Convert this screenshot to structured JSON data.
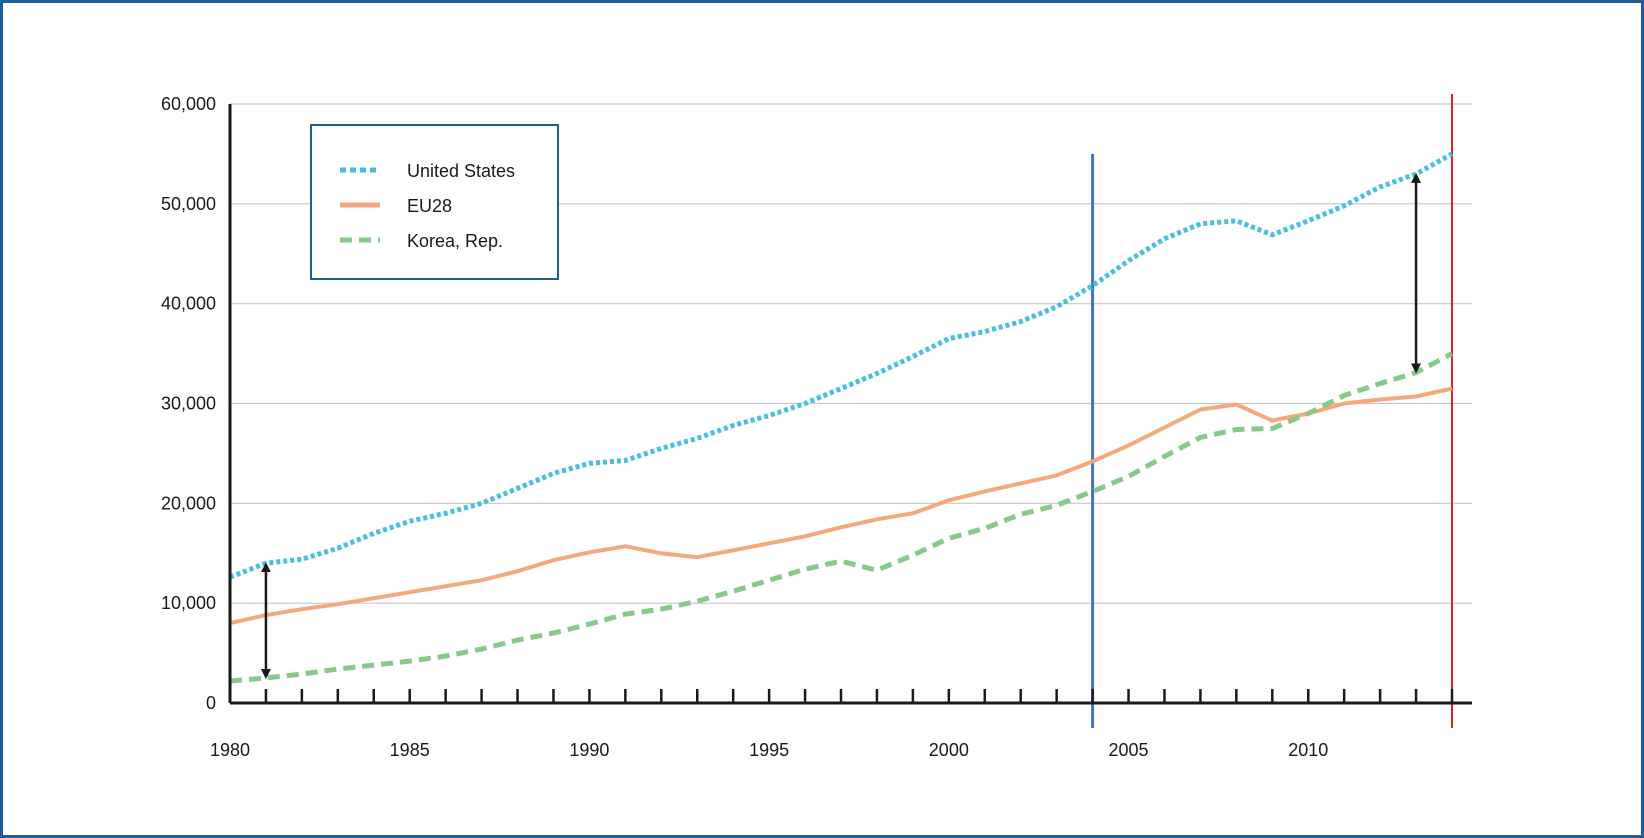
{
  "chart_data": {
    "type": "line",
    "x": [
      1980,
      1981,
      1982,
      1983,
      1984,
      1985,
      1986,
      1987,
      1988,
      1989,
      1990,
      1991,
      1992,
      1993,
      1994,
      1995,
      1996,
      1997,
      1998,
      1999,
      2000,
      2001,
      2002,
      2003,
      2004,
      2005,
      2006,
      2007,
      2008,
      2009,
      2010,
      2011,
      2012,
      2013,
      2014
    ],
    "series": [
      {
        "name": "United States",
        "color": "#45c0dd",
        "dash": "dotted",
        "values": [
          12600,
          14000,
          14400,
          15500,
          17000,
          18200,
          19000,
          20000,
          21500,
          23000,
          24000,
          24300,
          25500,
          26500,
          27800,
          28800,
          30000,
          31500,
          33000,
          34700,
          36500,
          37200,
          38200,
          39700,
          41800,
          44300,
          46500,
          48000,
          48300,
          46900,
          48300,
          49800,
          51700,
          53000,
          55000
        ]
      },
      {
        "name": "EU28",
        "color": "#f4a87c",
        "dash": "solid",
        "values": [
          8000,
          8800,
          9400,
          9900,
          10500,
          11100,
          11700,
          12300,
          13200,
          14300,
          15100,
          15700,
          15000,
          14600,
          15300,
          16000,
          16700,
          17600,
          18400,
          19000,
          20300,
          21200,
          22000,
          22800,
          24200,
          25800,
          27600,
          29400,
          29900,
          28300,
          29000,
          30000,
          30400,
          30700,
          31500
        ]
      },
      {
        "name": "Korea, Rep.",
        "color": "#86c98a",
        "dash": "dashed",
        "values": [
          2200,
          2500,
          2900,
          3400,
          3800,
          4200,
          4700,
          5400,
          6300,
          7000,
          7900,
          8900,
          9400,
          10200,
          11200,
          12300,
          13400,
          14200,
          13300,
          14800,
          16500,
          17500,
          18900,
          19800,
          21200,
          22700,
          24700,
          26600,
          27400,
          27500,
          29000,
          30800,
          32000,
          33100,
          35000
        ]
      }
    ],
    "xlim": [
      1980,
      2014
    ],
    "ylim": [
      0,
      60000
    ],
    "x_ticks": [
      "1980",
      "1985",
      "1990",
      "1995",
      "2000",
      "2005",
      "2010"
    ],
    "x_tick_values": [
      1980,
      1985,
      1990,
      1995,
      2000,
      2005,
      2010
    ],
    "y_ticks": [
      "0",
      "10,000",
      "20,000",
      "30,000",
      "40,000",
      "50,000",
      "60,000"
    ],
    "y_tick_values": [
      0,
      10000,
      20000,
      30000,
      40000,
      50000,
      60000
    ],
    "grid": "horizontal",
    "legend_position": "top-left",
    "reference_lines": [
      {
        "x": 2004,
        "color": "#4472c4"
      },
      {
        "x": 2014,
        "color": "#e02020"
      }
    ],
    "gap_arrows": [
      {
        "x": 1981,
        "from": 2500,
        "to": 14000
      },
      {
        "x": 2013,
        "from": 33100,
        "to": 53000
      }
    ],
    "axis_color": "#1a1a1a",
    "grid_color": "#c8c8c8",
    "frame_color": "#1f5d99"
  }
}
